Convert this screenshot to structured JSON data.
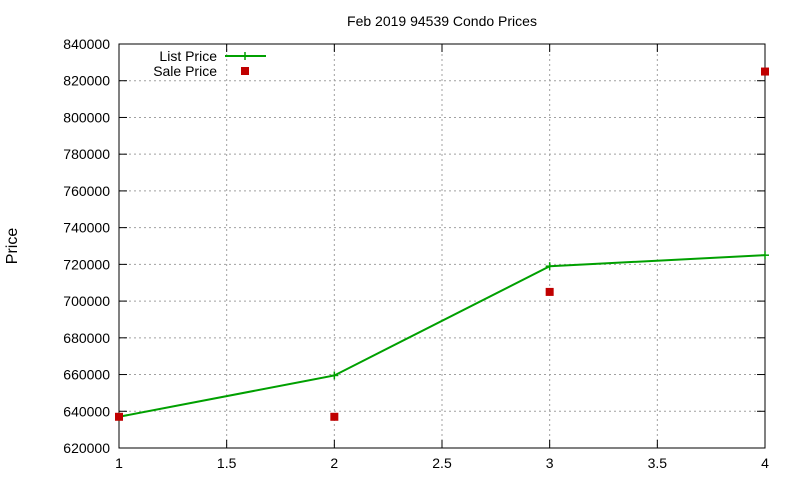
{
  "chart_data": {
    "type": "line",
    "title": "Feb 2019 94539 Condo Prices",
    "xlabel": "",
    "ylabel": "Price",
    "xlim": [
      1,
      4
    ],
    "ylim": [
      620000,
      840000
    ],
    "xticks": [
      "1",
      "1.5",
      "2",
      "2.5",
      "3",
      "3.5",
      "4"
    ],
    "yticks": [
      "620000",
      "640000",
      "660000",
      "680000",
      "700000",
      "720000",
      "740000",
      "760000",
      "780000",
      "800000",
      "820000",
      "840000"
    ],
    "grid": true,
    "legend_position": "top-left",
    "series": [
      {
        "name": "List Price",
        "style": "line+plus",
        "color": "#00a000",
        "x": [
          1,
          2,
          3,
          4
        ],
        "y": [
          637000,
          659500,
          719000,
          725000
        ]
      },
      {
        "name": "Sale Price",
        "style": "square-points",
        "color": "#c00000",
        "x": [
          1,
          2,
          3,
          4
        ],
        "y": [
          637000,
          637000,
          705000,
          825000
        ]
      }
    ]
  }
}
